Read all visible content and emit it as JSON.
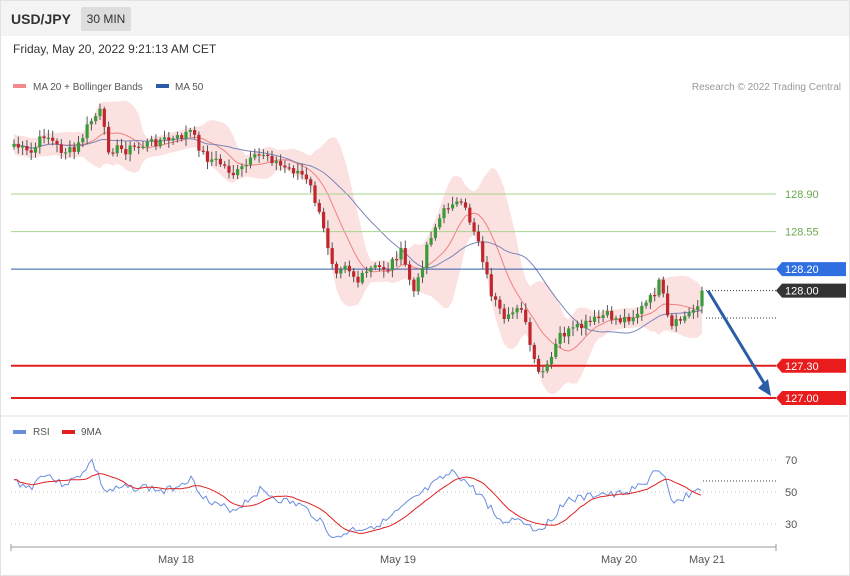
{
  "header": {
    "symbol": "USD/JPY",
    "timeframe": "30 MIN",
    "timestamp": "Friday, May 20, 2022 9:21:13 AM CET"
  },
  "legend": {
    "ma20": "MA 20 + Bollinger Bands",
    "ma50": "MA 50",
    "credit": "Research © 2022 Trading Central"
  },
  "rsi_legend": {
    "rsi": "RSI",
    "ma9": "9MA"
  },
  "colors": {
    "bull": "#3a9a3a",
    "bear": "#c0262d",
    "band": "#fbd5d5",
    "ma20": "#f28b8b",
    "ma50": "#7e86b8",
    "level_green": "#a6d38a",
    "level_blue": "#1f5fbf",
    "level_red": "#e02020",
    "rsi": "#6a8de0",
    "rsi_ma": "#e02020"
  },
  "chart_data": [
    {
      "type": "candlestick",
      "instrument": "USD/JPY",
      "timeframe": "30 MIN",
      "ylim": [
        126.9,
        129.7
      ],
      "x_tick_labels": [
        "May 18",
        "May 19",
        "May 20",
        "May 21"
      ],
      "levels": [
        {
          "label": "128.90",
          "value": 128.9,
          "style": "resistance"
        },
        {
          "label": "128.55",
          "value": 128.55,
          "style": "resistance"
        },
        {
          "label": "128.20",
          "value": 128.2,
          "style": "pivot"
        },
        {
          "label": "128.00",
          "value": 128.0,
          "style": "last"
        },
        {
          "label": "127.30",
          "value": 127.3,
          "style": "target"
        },
        {
          "label": "127.00",
          "value": 127.0,
          "style": "target"
        }
      ],
      "trend_arrow": {
        "from_value": 128.0,
        "to_value": 127.0
      }
    },
    {
      "type": "line",
      "name": "RSI",
      "ylim": [
        20,
        80
      ],
      "y_tick_labels": [
        "70",
        "50",
        "30"
      ],
      "y_ticks": [
        70,
        50,
        30
      ],
      "last_rsi": 51
    }
  ]
}
